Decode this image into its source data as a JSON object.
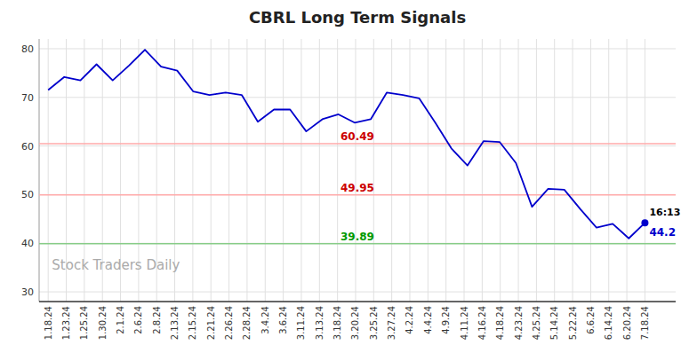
{
  "chart_data": {
    "type": "line",
    "title": "CBRL Long Term Signals",
    "x": [
      0,
      0.8918918918918919,
      1.7837837837837838,
      2.675675675675676,
      3.5675675675675675,
      4.45945945945946,
      5.351351351351352,
      6.243243243243243,
      7.135135135135135,
      8.027027027027026,
      8.91891891891892,
      9.81081081081081,
      10.702702702702704,
      11.594594594594595,
      12.486486486486486,
      13.378378378378379,
      14.27027027027027,
      15.162162162162161,
      16.054054054054053,
      16.945945945945947,
      17.83783783783784,
      18.72972972972973,
      19.62162162162162,
      20.513513513513512,
      21.405405405405407,
      22.2972972972973,
      23.18918918918919,
      24.08108108108108,
      24.972972972972972,
      25.864864864864863,
      26.756756756756758,
      27.64864864864865,
      28.54054054054054,
      29.43243243243243,
      30.324324324324323,
      31.216216216216218,
      32.108108108108105,
      33
    ],
    "values": [
      71.5,
      74.2,
      73.5,
      76.8,
      73.5,
      76.5,
      79.8,
      76.3,
      75.5,
      71.2,
      70.5,
      71.0,
      70.5,
      65.0,
      67.5,
      67.5,
      63.0,
      65.5,
      66.5,
      64.8,
      65.5,
      71.0,
      70.5,
      69.8,
      64.8,
      59.5,
      56.0,
      61.0,
      60.8,
      56.5,
      47.5,
      51.2,
      51.0,
      47.0,
      43.2,
      44.0,
      41.0,
      44.2
    ],
    "color": "#0000cc",
    "xlim": [
      -0.5,
      34.7
    ],
    "xticks": [
      {
        "value": 0,
        "label": "1.18.24"
      },
      {
        "value": 1,
        "label": "1.23.24"
      },
      {
        "value": 2,
        "label": "1.25.24"
      },
      {
        "value": 3,
        "label": "1.30.24"
      },
      {
        "value": 4,
        "label": "2.1.24"
      },
      {
        "value": 5,
        "label": "2.6.24"
      },
      {
        "value": 6,
        "label": "2.8.24"
      },
      {
        "value": 7,
        "label": "2.13.24"
      },
      {
        "value": 8,
        "label": "2.15.24"
      },
      {
        "value": 9,
        "label": "2.21.24"
      },
      {
        "value": 10,
        "label": "2.26.24"
      },
      {
        "value": 11,
        "label": "2.28.24"
      },
      {
        "value": 12,
        "label": "3.4.24"
      },
      {
        "value": 13,
        "label": "3.6.24"
      },
      {
        "value": 14,
        "label": "3.11.24"
      },
      {
        "value": 15,
        "label": "3.13.24"
      },
      {
        "value": 16,
        "label": "3.18.24"
      },
      {
        "value": 17,
        "label": "3.20.24"
      },
      {
        "value": 18,
        "label": "3.25.24"
      },
      {
        "value": 19,
        "label": "3.27.24"
      },
      {
        "value": 20,
        "label": "4.2.24"
      },
      {
        "value": 21,
        "label": "4.4.24"
      },
      {
        "value": 22,
        "label": "4.9.24"
      },
      {
        "value": 23,
        "label": "4.11.24"
      },
      {
        "value": 24,
        "label": "4.16.24"
      },
      {
        "value": 25,
        "label": "4.18.24"
      },
      {
        "value": 26,
        "label": "4.23.24"
      },
      {
        "value": 27,
        "label": "4.25.24"
      },
      {
        "value": 28,
        "label": "5.14.24"
      },
      {
        "value": 29,
        "label": "5.22.24"
      },
      {
        "value": 30,
        "label": "6.6.24"
      },
      {
        "value": 31,
        "label": "6.14.24"
      },
      {
        "value": 32,
        "label": "6.20.24"
      },
      {
        "value": 33,
        "label": "7.18.24"
      }
    ],
    "ylim": [
      28,
      82
    ],
    "yticks": [
      30,
      40,
      50,
      60,
      70,
      80
    ],
    "grid": true,
    "hlines": [
      {
        "value": 60.49,
        "label": "60.49",
        "color": "#ffaaaa",
        "label_color": "#cc0000"
      },
      {
        "value": 49.95,
        "label": "49.95",
        "color": "#ffaaaa",
        "label_color": "#cc0000"
      },
      {
        "value": 39.89,
        "label": "39.89",
        "color": "#88cc88",
        "label_color": "#009900"
      }
    ],
    "point_labels": [
      {
        "text": "16:13",
        "color": "#000000"
      },
      {
        "text": "44.2",
        "color": "#0000cc"
      }
    ],
    "watermark": {
      "text": "Stock Traders Daily",
      "color": "#aaaaaa"
    }
  }
}
